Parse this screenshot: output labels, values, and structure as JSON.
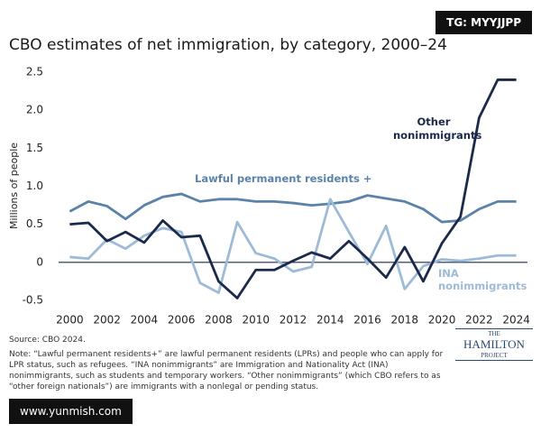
{
  "chart_data": {
    "type": "line",
    "title": "CBO estimates of net immigration, by category, 2000–24",
    "y_label": "Millions of people",
    "x": [
      2000,
      2001,
      2002,
      2003,
      2004,
      2005,
      2006,
      2007,
      2008,
      2009,
      2010,
      2011,
      2012,
      2013,
      2014,
      2015,
      2016,
      2017,
      2018,
      2019,
      2020,
      2021,
      2022,
      2023,
      2024
    ],
    "series": [
      {
        "name": "Lawful permanent residents +",
        "color": "#5b82a8",
        "values": [
          0.67,
          0.8,
          0.74,
          0.57,
          0.75,
          0.86,
          0.9,
          0.8,
          0.83,
          0.83,
          0.8,
          0.8,
          0.78,
          0.75,
          0.77,
          0.8,
          0.88,
          0.84,
          0.8,
          0.7,
          0.53,
          0.55,
          0.7,
          0.8,
          0.8
        ]
      },
      {
        "name": "INA nonimmigrants",
        "color": "#9dbbd6",
        "values": [
          0.07,
          0.05,
          0.3,
          0.18,
          0.35,
          0.45,
          0.4,
          -0.27,
          -0.4,
          0.53,
          0.12,
          0.05,
          -0.12,
          -0.06,
          0.83,
          0.4,
          -0.02,
          0.48,
          -0.35,
          -0.05,
          0.04,
          0.02,
          0.05,
          0.09,
          0.09
        ]
      },
      {
        "name": "Other nonimmigrants",
        "color": "#1b2a4a",
        "values": [
          0.5,
          0.52,
          0.28,
          0.4,
          0.26,
          0.55,
          0.33,
          0.35,
          -0.25,
          -0.47,
          -0.1,
          -0.1,
          0.02,
          0.13,
          0.05,
          0.28,
          0.05,
          -0.2,
          0.2,
          -0.25,
          0.25,
          0.6,
          1.9,
          2.4,
          2.4
        ]
      }
    ],
    "xlim": [
      1999.4,
      2024.6
    ],
    "xticks": [
      2000,
      2002,
      2004,
      2006,
      2008,
      2010,
      2012,
      2014,
      2016,
      2018,
      2020,
      2022,
      2024
    ],
    "ylim": [
      -0.5,
      2.5
    ],
    "yticks": [
      -0.5,
      0,
      0.5,
      {
        "value": 1,
        "label": "1.0"
      },
      1.5,
      {
        "value": 2,
        "label": "2.0"
      },
      2.5
    ],
    "source": "Source: CBO 2024.",
    "note": "Note: “Lawful permanent residents+” are lawful permanent residents (LPRs) and people who can apply for LPR status, such as refugees. “INA nonimmigrants” are Immigration and Nationality Act (INA) nonimmigrants, such as students and temporary workers. “Other nonimmigrants” (which CBO refers to as “other foreign nationals”) are immigrants with a nonlegal or pending status.",
    "logo": [
      "THE",
      "HAMILTON",
      "PROJECT"
    ],
    "watermarks": [
      "TG: MYYJJPP",
      "www.yunmish.com"
    ]
  }
}
